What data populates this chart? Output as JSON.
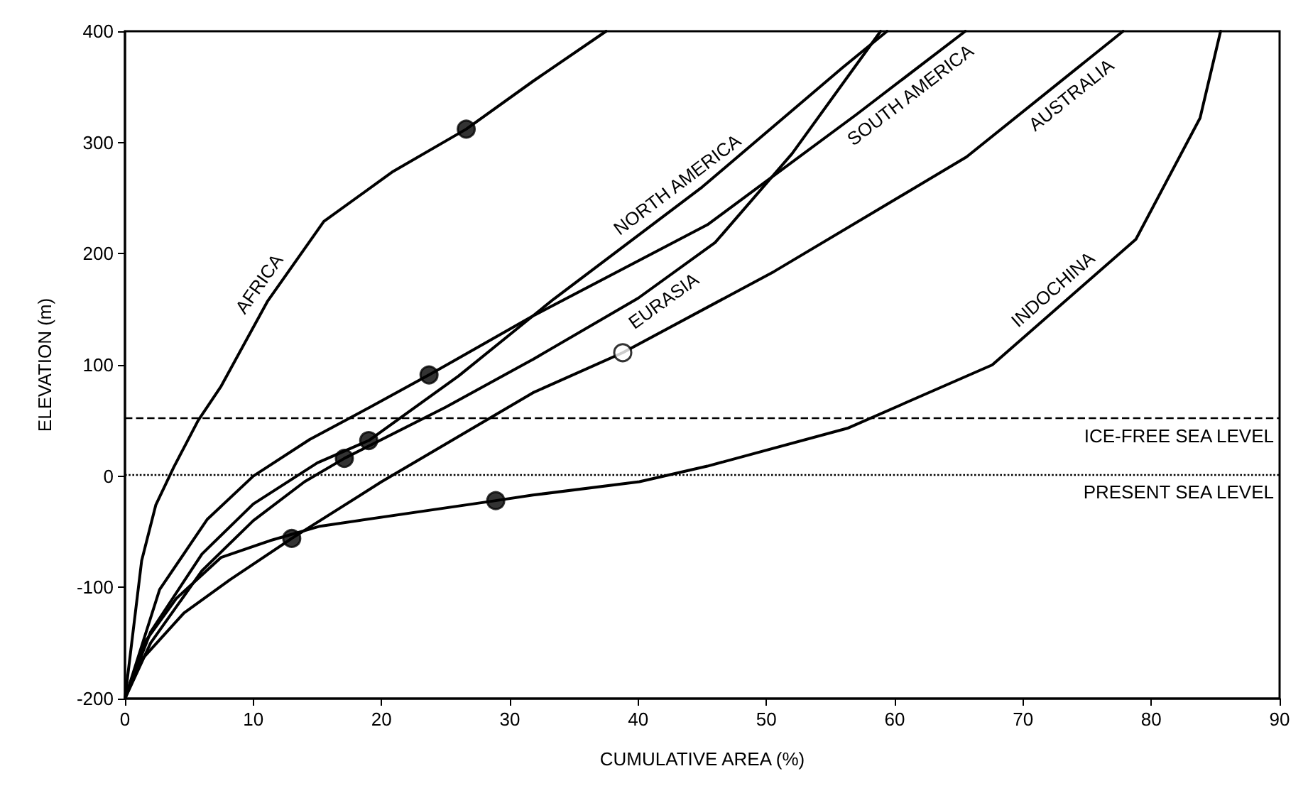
{
  "chart_data": {
    "type": "line",
    "xlabel": "CUMULATIVE AREA (%)",
    "ylabel": "ELEVATION (m)",
    "xlim": [
      0,
      90
    ],
    "xticks": [
      0,
      10,
      20,
      30,
      40,
      50,
      60,
      70,
      80,
      90
    ],
    "ylim": [
      -200,
      400
    ],
    "yticks": [
      -200,
      -100,
      0,
      100,
      200,
      300,
      400
    ],
    "grid": false,
    "legend": false,
    "marker": "none",
    "line_style": "solid",
    "series": [
      {
        "name": "AFRICA",
        "color": "#000000",
        "x": [
          0,
          1.3,
          2.4,
          3.8,
          5.7,
          7.5,
          11.1,
          15.5,
          20.9,
          26.6,
          31.8,
          37.5
        ],
        "values": [
          -200,
          -76,
          -26,
          8,
          50,
          81,
          157,
          229,
          274,
          312,
          355,
          400
        ]
      },
      {
        "name": "SOUTH AMERICA",
        "color": "#000000",
        "x": [
          0,
          2.7,
          6.4,
          10,
          14.4,
          19.1,
          23.7,
          31.8,
          45.4,
          57,
          65.5
        ],
        "values": [
          -200,
          -102,
          -39,
          0,
          33,
          62,
          91,
          144,
          226,
          325,
          400
        ]
      },
      {
        "name": "NORTH AMERICA",
        "color": "#000000",
        "x": [
          0,
          2,
          6,
          10,
          15,
          19,
          26,
          33.4,
          45,
          55.9,
          59.4
        ],
        "values": [
          -200,
          -140,
          -70,
          -25,
          12,
          32,
          90,
          159,
          260,
          367,
          400
        ]
      },
      {
        "name": "EURASIA",
        "color": "#000000",
        "x": [
          0,
          2,
          6,
          10,
          14,
          17.1,
          25,
          31.8,
          40,
          46,
          52,
          58.9
        ],
        "values": [
          -200,
          -150,
          -85,
          -40,
          -5,
          16,
          62,
          105,
          160,
          210,
          290,
          400
        ]
      },
      {
        "name": "AUSTRALIA",
        "color": "#000000",
        "x": [
          0,
          1.3,
          4.6,
          8.2,
          13,
          20,
          31.8,
          38.8,
          50.6,
          65.6,
          77.8
        ],
        "values": [
          -200,
          -165,
          -123,
          -93,
          -56,
          -5,
          75,
          111,
          184,
          287,
          400
        ]
      },
      {
        "name": "INDOCHINA",
        "color": "#000000",
        "x": [
          0,
          1.5,
          4,
          7.5,
          11.3,
          15.2,
          28.9,
          31.8,
          40.1,
          45.4,
          56.3,
          67.6,
          78.8,
          83.8,
          85.4
        ],
        "values": [
          -200,
          -150,
          -110,
          -73,
          -58,
          -45,
          -22,
          -17,
          -5,
          9,
          43,
          100,
          213,
          322,
          400
        ]
      },
      {
        "type": "scatter",
        "marker": "circle",
        "color": "#000000",
        "x": [
          26.6,
          23.7,
          19,
          17.1,
          13,
          28.9
        ],
        "values": [
          312,
          91,
          32,
          16,
          -56,
          -22
        ]
      },
      {
        "type": "scatter",
        "marker": "circle",
        "color": "#ffffff",
        "x": [
          38.8
        ],
        "values": [
          111
        ]
      }
    ],
    "ref_lines": [
      {
        "axis": "y",
        "value": 52,
        "label": "ICE-FREE SEA LEVEL",
        "line_style": "dashed"
      },
      {
        "axis": "y",
        "value": 2,
        "label": "PRESENT SEA LEVEL",
        "line_style": "dotted"
      }
    ]
  }
}
